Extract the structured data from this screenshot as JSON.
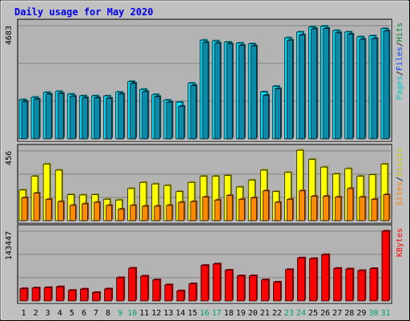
{
  "chart_data": {
    "type": "bar",
    "title": "Daily usage for May 2020",
    "categories": [
      "1",
      "2",
      "3",
      "4",
      "5",
      "6",
      "7",
      "8",
      "9",
      "10",
      "11",
      "12",
      "13",
      "14",
      "15",
      "16",
      "17",
      "18",
      "19",
      "20",
      "21",
      "22",
      "23",
      "24",
      "25",
      "26",
      "27",
      "28",
      "29",
      "30",
      "31"
    ],
    "weekend_days": [
      "9",
      "10",
      "16",
      "17",
      "23",
      "24",
      "30",
      "31"
    ],
    "colors": {
      "background": "#c0c0c0",
      "plot": "#b3b3b3",
      "title": "#0000ee",
      "weekday_label": "#000000",
      "weekend_label": "#00a060",
      "hits": "#00e0ff",
      "files": "#0a8aa8",
      "visits": "#ffff00",
      "sites": "#ff8a00",
      "kbytes": "#ff0000",
      "pages_legend": "#00c8c8",
      "files_legend": "#0040ff",
      "hits_legend": "#008040",
      "sites_legend": "#ff8000",
      "visits_legend": "#c8c800",
      "kbytes_legend": "#ff0000"
    },
    "panels": [
      {
        "id": "hits-files",
        "max_label": "4683",
        "max": 4683,
        "legend": [
          "Pages",
          "/",
          "Files",
          "/",
          "Hits"
        ],
        "series": [
          {
            "name": "Hits",
            "values": [
              1620,
              1720,
              1920,
              1960,
              1850,
              1780,
              1780,
              1770,
              1930,
              2370,
              2050,
              1830,
              1600,
              1520,
              2300,
              4080,
              4050,
              4000,
              3960,
              3930,
              1940,
              2170,
              4180,
              4420,
              4630,
              4660,
              4480,
              4420,
              4220,
              4260,
              4560
            ]
          },
          {
            "name": "Files",
            "values": [
              1550,
              1640,
              1850,
              1880,
              1760,
              1700,
              1700,
              1680,
              1860,
              2300,
              1960,
              1750,
              1520,
              1350,
              2210,
              3990,
              3960,
              3930,
              3870,
              3850,
              1800,
              2080,
              4080,
              4300,
              4550,
              4570,
              4390,
              4330,
              4120,
              4150,
              4470
            ]
          }
        ]
      },
      {
        "id": "visits-sites",
        "max_label": "456",
        "max": 456,
        "legend": [
          "Sites",
          "/",
          "Visits"
        ],
        "series": [
          {
            "name": "Visits",
            "values": [
              200,
              290,
              370,
              330,
              170,
              168,
              170,
              140,
              135,
              210,
              250,
              240,
              230,
              190,
              250,
              290,
              290,
              295,
              220,
              265,
              330,
              190,
              315,
              460,
              400,
              350,
              305,
              340,
              290,
              300,
              370
            ]
          },
          {
            "name": "Sites",
            "values": [
              150,
              180,
              140,
              125,
              100,
              110,
              120,
              100,
              75,
              100,
              95,
              95,
              100,
              120,
              125,
              155,
              135,
              165,
              140,
              150,
              195,
              120,
              140,
              195,
              160,
              160,
              155,
              210,
              155,
              140,
              170
            ]
          }
        ]
      },
      {
        "id": "kbytes",
        "max_label": "143447",
        "max": 143447,
        "legend": [
          "KBytes"
        ],
        "series": [
          {
            "name": "KBytes",
            "values": [
              25300,
              26700,
              27500,
              29100,
              21700,
              24400,
              17300,
              24700,
              47700,
              67300,
              51000,
              43300,
              33100,
              20800,
              35300,
              73000,
              75900,
              63200,
              51600,
              51600,
              43300,
              38600,
              64500,
              88400,
              87000,
              95100,
              67000,
              65700,
              62400,
              66500,
              143400
            ]
          }
        ]
      }
    ]
  }
}
